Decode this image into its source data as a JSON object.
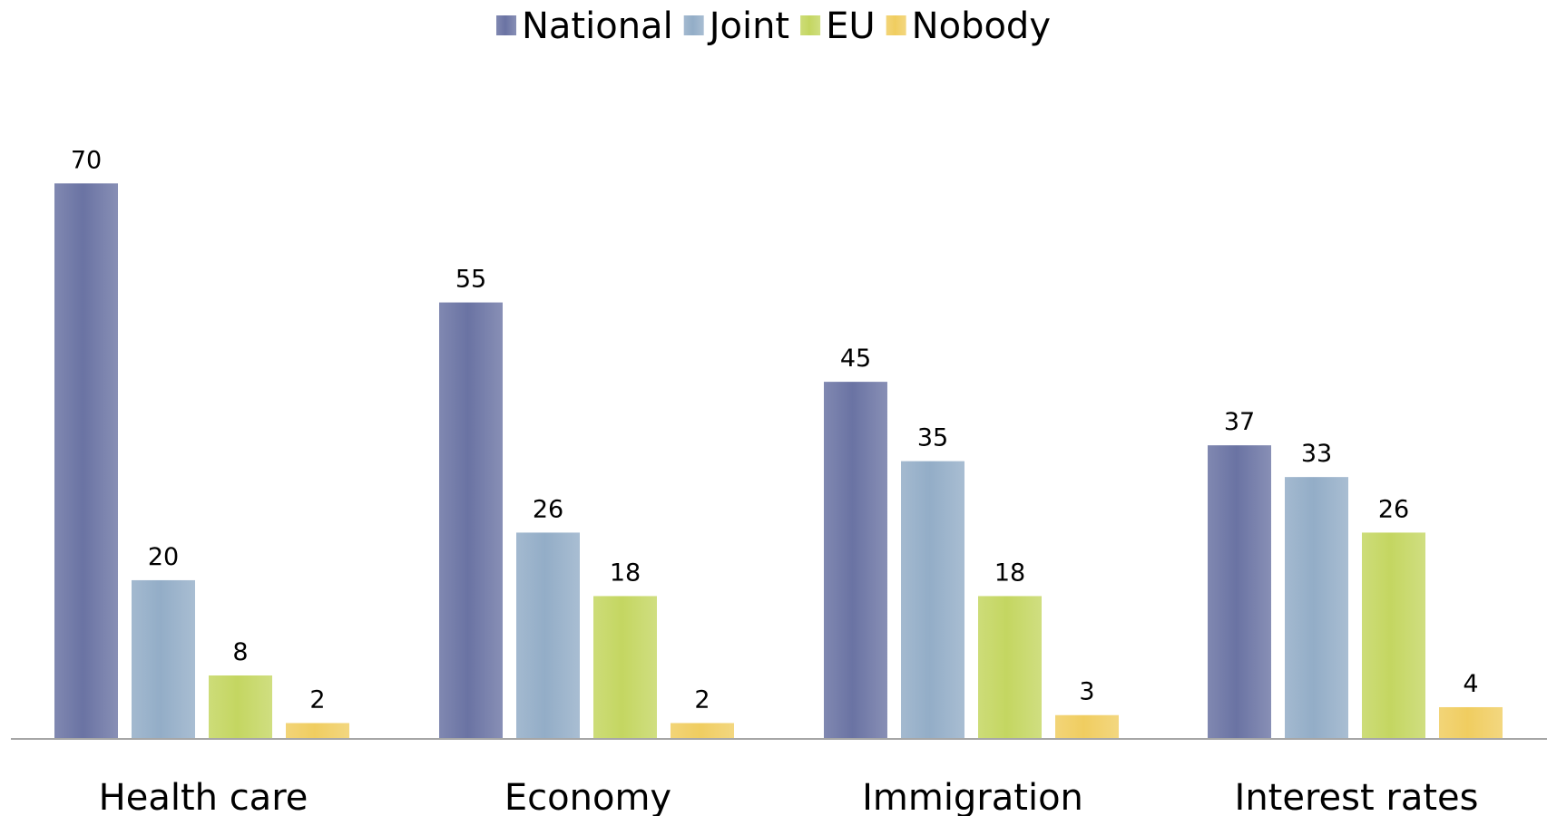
{
  "chart_data": {
    "type": "bar",
    "categories": [
      "Health care",
      "Economy",
      "Immigration",
      "Interest rates"
    ],
    "series": [
      {
        "name": "National",
        "values": [
          70,
          55,
          45,
          37
        ],
        "color": "#6a73a3"
      },
      {
        "name": "Joint",
        "values": [
          20,
          26,
          35,
          33
        ],
        "color": "#93adc7"
      },
      {
        "name": "EU",
        "values": [
          8,
          18,
          18,
          26
        ],
        "color": "#c4d661"
      },
      {
        "name": "Nobody",
        "values": [
          2,
          2,
          3,
          4
        ],
        "color": "#f0cd60"
      }
    ],
    "title": "",
    "xlabel": "",
    "ylabel": "",
    "ylim": [
      0,
      70
    ],
    "grid": false,
    "legend": "top-center",
    "data_labels": true
  }
}
